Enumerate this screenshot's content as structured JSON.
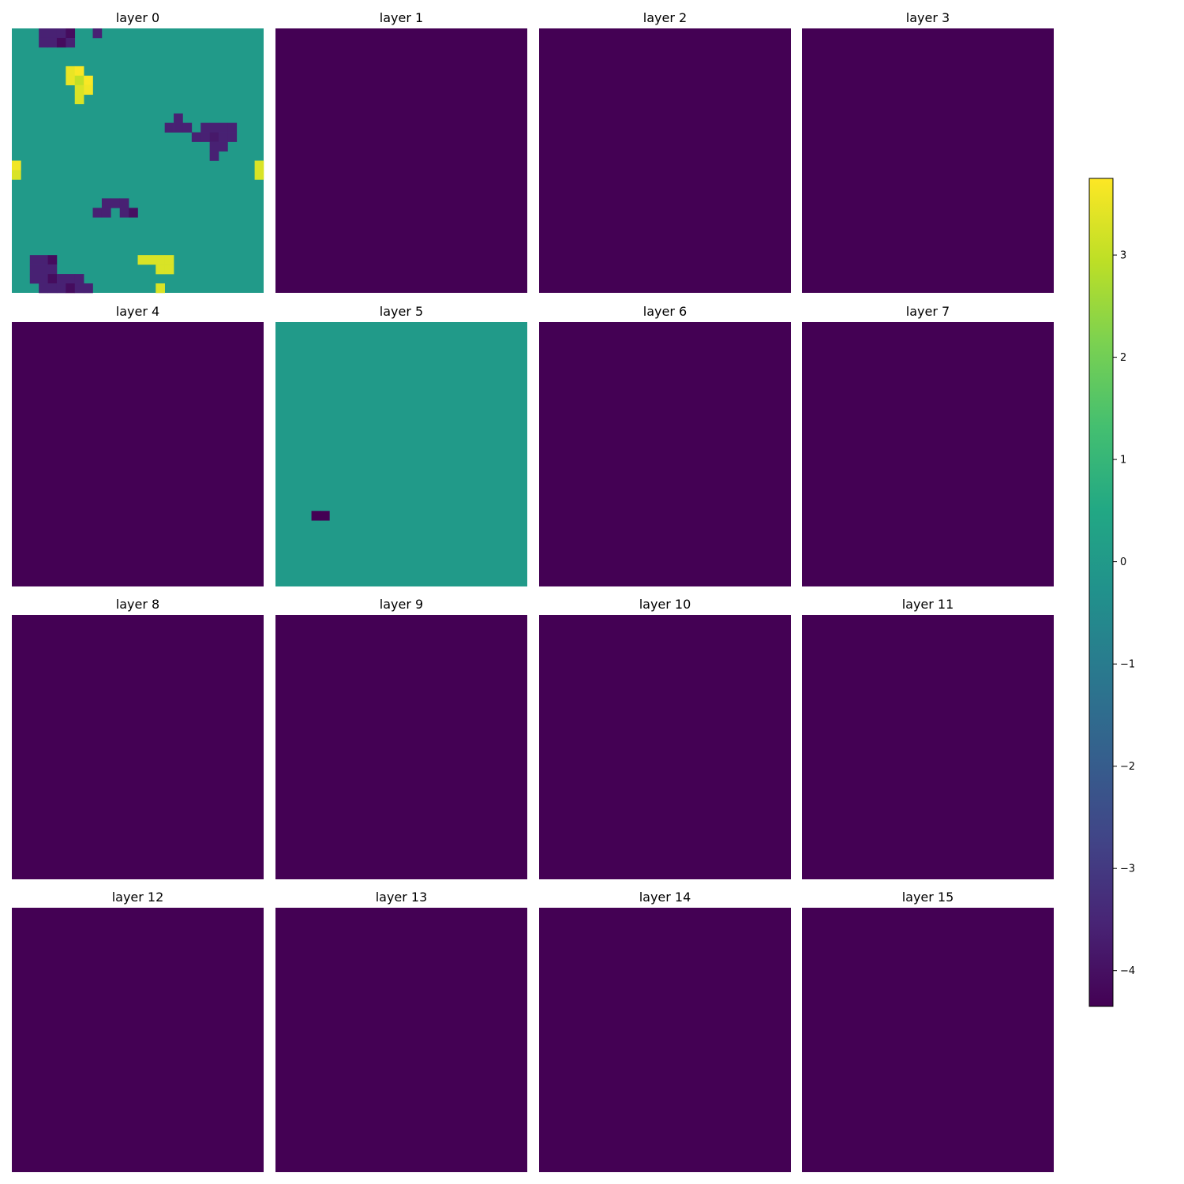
{
  "chart_data": {
    "type": "heatmap",
    "colormap": "viridis",
    "grid_on": false,
    "axes_visible": false,
    "vmin": -4.35,
    "vmax": 3.75,
    "colorbar": {
      "placement": "right",
      "ticks": [
        3,
        2,
        1,
        0,
        -1,
        -2,
        -3,
        -4
      ],
      "tick_labels": [
        "3",
        "2",
        "1",
        "0",
        "−1",
        "−2",
        "−3",
        "−4"
      ]
    },
    "panels": [
      {
        "title": "layer 0",
        "rows": 28,
        "cols": 28,
        "fill": 0,
        "cells": [
          {
            "r": 0,
            "c": 3,
            "v": -3.6
          },
          {
            "r": 0,
            "c": 4,
            "v": -3.6
          },
          {
            "r": 0,
            "c": 5,
            "v": -3.6
          },
          {
            "r": 0,
            "c": 6,
            "v": -4.1
          },
          {
            "r": 0,
            "c": 9,
            "v": -3.6
          },
          {
            "r": 1,
            "c": 3,
            "v": -3.6
          },
          {
            "r": 1,
            "c": 4,
            "v": -3.6
          },
          {
            "r": 1,
            "c": 5,
            "v": -4.1
          },
          {
            "r": 1,
            "c": 6,
            "v": -3.6
          },
          {
            "r": 4,
            "c": 6,
            "v": 3.5
          },
          {
            "r": 4,
            "c": 7,
            "v": 3.7
          },
          {
            "r": 5,
            "c": 6,
            "v": 3.5
          },
          {
            "r": 5,
            "c": 7,
            "v": 3.0
          },
          {
            "r": 5,
            "c": 8,
            "v": 3.7
          },
          {
            "r": 6,
            "c": 7,
            "v": 3.3
          },
          {
            "r": 6,
            "c": 8,
            "v": 3.6
          },
          {
            "r": 7,
            "c": 7,
            "v": 3.3
          },
          {
            "r": 9,
            "c": 18,
            "v": -3.6
          },
          {
            "r": 10,
            "c": 17,
            "v": -3.6
          },
          {
            "r": 10,
            "c": 18,
            "v": -3.6
          },
          {
            "r": 10,
            "c": 19,
            "v": -3.6
          },
          {
            "r": 10,
            "c": 21,
            "v": -3.6
          },
          {
            "r": 10,
            "c": 22,
            "v": -3.6
          },
          {
            "r": 10,
            "c": 23,
            "v": -3.6
          },
          {
            "r": 10,
            "c": 24,
            "v": -3.6
          },
          {
            "r": 11,
            "c": 20,
            "v": -3.6
          },
          {
            "r": 11,
            "c": 21,
            "v": -3.6
          },
          {
            "r": 11,
            "c": 22,
            "v": -3.8
          },
          {
            "r": 11,
            "c": 23,
            "v": -3.6
          },
          {
            "r": 11,
            "c": 24,
            "v": -3.6
          },
          {
            "r": 12,
            "c": 22,
            "v": -3.6
          },
          {
            "r": 12,
            "c": 23,
            "v": -3.6
          },
          {
            "r": 13,
            "c": 22,
            "v": -3.6
          },
          {
            "r": 14,
            "c": 0,
            "v": 3.6
          },
          {
            "r": 14,
            "c": 27,
            "v": 3.3
          },
          {
            "r": 15,
            "c": 0,
            "v": 3.3
          },
          {
            "r": 15,
            "c": 27,
            "v": 3.3
          },
          {
            "r": 18,
            "c": 10,
            "v": -3.6
          },
          {
            "r": 18,
            "c": 11,
            "v": -3.6
          },
          {
            "r": 18,
            "c": 12,
            "v": -3.6
          },
          {
            "r": 19,
            "c": 9,
            "v": -3.6
          },
          {
            "r": 19,
            "c": 10,
            "v": -3.6
          },
          {
            "r": 19,
            "c": 12,
            "v": -3.6
          },
          {
            "r": 19,
            "c": 13,
            "v": -4.0
          },
          {
            "r": 24,
            "c": 2,
            "v": -3.6
          },
          {
            "r": 24,
            "c": 3,
            "v": -3.6
          },
          {
            "r": 24,
            "c": 4,
            "v": -4.1
          },
          {
            "r": 24,
            "c": 14,
            "v": 3.3
          },
          {
            "r": 24,
            "c": 15,
            "v": 3.3
          },
          {
            "r": 24,
            "c": 16,
            "v": 3.3
          },
          {
            "r": 24,
            "c": 17,
            "v": 3.3
          },
          {
            "r": 25,
            "c": 2,
            "v": -3.6
          },
          {
            "r": 25,
            "c": 3,
            "v": -3.6
          },
          {
            "r": 25,
            "c": 4,
            "v": -3.6
          },
          {
            "r": 25,
            "c": 16,
            "v": 3.3
          },
          {
            "r": 25,
            "c": 17,
            "v": 3.3
          },
          {
            "r": 26,
            "c": 2,
            "v": -3.6
          },
          {
            "r": 26,
            "c": 3,
            "v": -3.6
          },
          {
            "r": 26,
            "c": 4,
            "v": -4.1
          },
          {
            "r": 26,
            "c": 5,
            "v": -3.6
          },
          {
            "r": 26,
            "c": 6,
            "v": -3.6
          },
          {
            "r": 26,
            "c": 7,
            "v": -3.6
          },
          {
            "r": 27,
            "c": 3,
            "v": -3.6
          },
          {
            "r": 27,
            "c": 4,
            "v": -3.6
          },
          {
            "r": 27,
            "c": 5,
            "v": -3.6
          },
          {
            "r": 27,
            "c": 6,
            "v": -4.1
          },
          {
            "r": 27,
            "c": 7,
            "v": -3.6
          },
          {
            "r": 27,
            "c": 8,
            "v": -3.6
          },
          {
            "r": 27,
            "c": 16,
            "v": 3.3
          }
        ]
      },
      {
        "title": "layer 1",
        "rows": 28,
        "cols": 28,
        "fill": -4.35,
        "cells": []
      },
      {
        "title": "layer 2",
        "rows": 28,
        "cols": 28,
        "fill": -4.35,
        "cells": []
      },
      {
        "title": "layer 3",
        "rows": 28,
        "cols": 28,
        "fill": -4.35,
        "cells": []
      },
      {
        "title": "layer 4",
        "rows": 28,
        "cols": 28,
        "fill": -4.35,
        "cells": []
      },
      {
        "title": "layer 5",
        "rows": 28,
        "cols": 28,
        "fill": 0,
        "cells": [
          {
            "r": 20,
            "c": 4,
            "v": -4.35
          },
          {
            "r": 20,
            "c": 5,
            "v": -4.35
          }
        ]
      },
      {
        "title": "layer 6",
        "rows": 28,
        "cols": 28,
        "fill": -4.35,
        "cells": []
      },
      {
        "title": "layer 7",
        "rows": 28,
        "cols": 28,
        "fill": -4.35,
        "cells": []
      },
      {
        "title": "layer 8",
        "rows": 28,
        "cols": 28,
        "fill": -4.35,
        "cells": []
      },
      {
        "title": "layer 9",
        "rows": 28,
        "cols": 28,
        "fill": -4.35,
        "cells": []
      },
      {
        "title": "layer 10",
        "rows": 28,
        "cols": 28,
        "fill": -4.35,
        "cells": []
      },
      {
        "title": "layer 11",
        "rows": 28,
        "cols": 28,
        "fill": -4.35,
        "cells": []
      },
      {
        "title": "layer 12",
        "rows": 28,
        "cols": 28,
        "fill": -4.35,
        "cells": []
      },
      {
        "title": "layer 13",
        "rows": 28,
        "cols": 28,
        "fill": -4.35,
        "cells": []
      },
      {
        "title": "layer 14",
        "rows": 28,
        "cols": 28,
        "fill": -4.35,
        "cells": []
      },
      {
        "title": "layer 15",
        "rows": 28,
        "cols": 28,
        "fill": -4.35,
        "cells": []
      }
    ]
  }
}
